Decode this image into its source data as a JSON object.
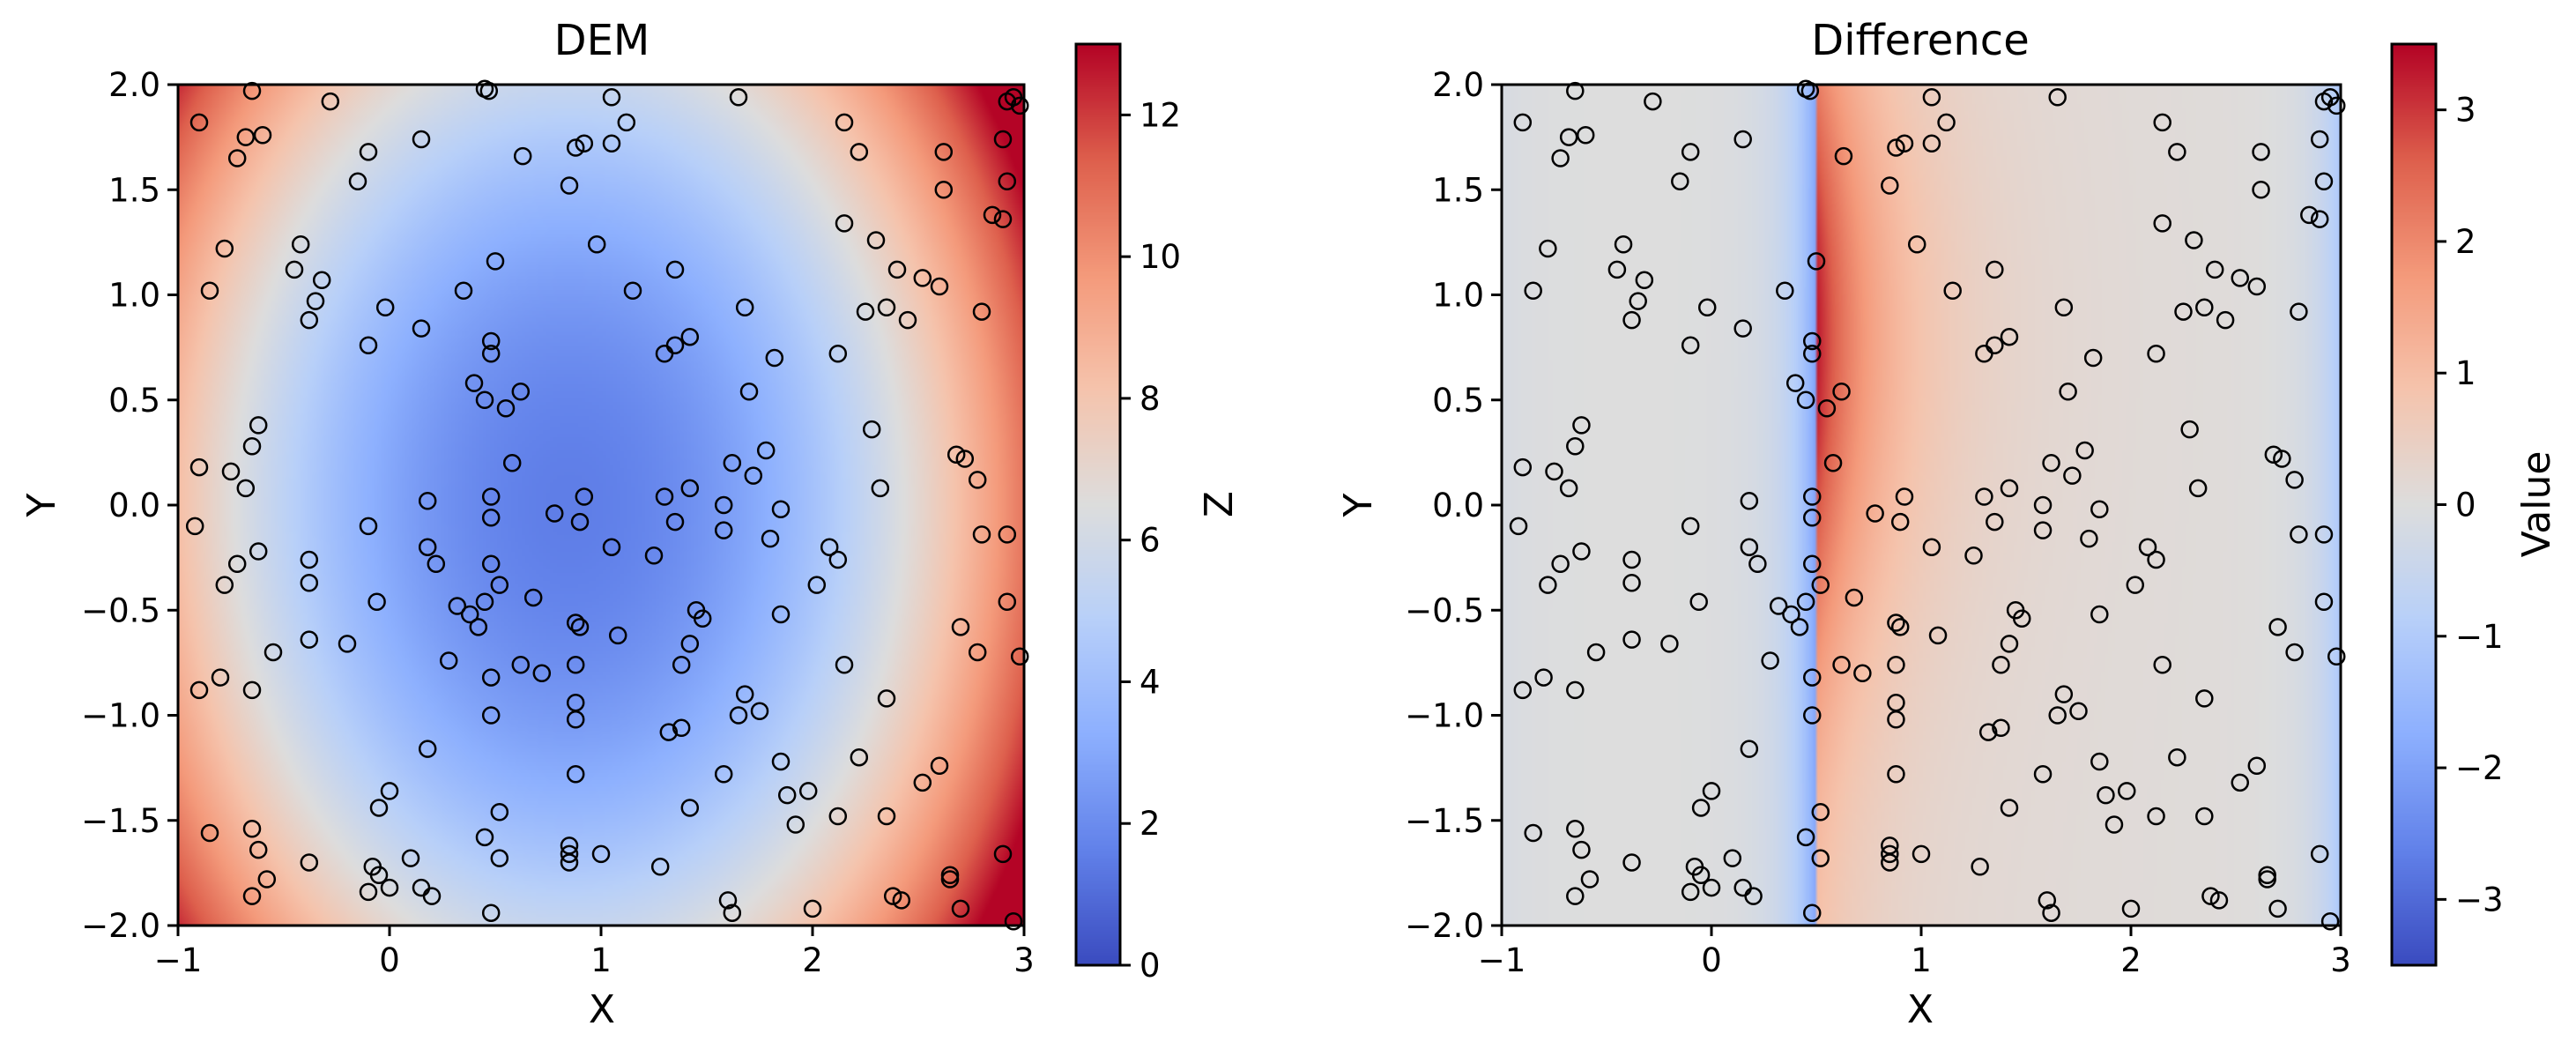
{
  "chart_data": [
    {
      "type": "heatmap",
      "title": "DEM",
      "xlabel": "X",
      "ylabel": "Y",
      "xlim": [
        -1,
        3
      ],
      "ylim": [
        -2,
        2
      ],
      "x_ticks": [
        -1,
        0,
        1,
        2,
        3
      ],
      "x_tick_labels": [
        "−1",
        "0",
        "1",
        "2",
        "3"
      ],
      "y_ticks": [
        -2,
        -1.5,
        -1,
        -0.5,
        0,
        0.5,
        1,
        1.5,
        2
      ],
      "y_tick_labels": [
        "−2.0",
        "−1.5",
        "−1.0",
        "−0.5",
        "0.0",
        "0.5",
        "1.0",
        "1.5",
        "2.0"
      ],
      "colormap": "coolwarm",
      "field": "z = 2*(x-0.85)^2 + 1.0*y^2 + 1.5",
      "colorbar": {
        "label": "Z",
        "range": [
          0,
          13
        ],
        "ticks": [
          0,
          2,
          4,
          6,
          8,
          10,
          12
        ],
        "tick_labels": [
          "0",
          "2",
          "4",
          "6",
          "8",
          "10",
          "12"
        ]
      },
      "points_style": "open black circles"
    },
    {
      "type": "heatmap",
      "title": "Difference",
      "xlabel": "X",
      "ylabel": "Y",
      "xlim": [
        -1,
        3
      ],
      "ylim": [
        -2,
        2
      ],
      "x_ticks": [
        -1,
        0,
        1,
        2,
        3
      ],
      "x_tick_labels": [
        "−1",
        "0",
        "1",
        "2",
        "3"
      ],
      "y_ticks": [
        -2,
        -1.5,
        -1,
        -0.5,
        0,
        0.5,
        1,
        1.5,
        2
      ],
      "y_tick_labels": [
        "−2.0",
        "−1.5",
        "−1.0",
        "−0.5",
        "0.0",
        "0.5",
        "1.0",
        "1.5",
        "2.0"
      ],
      "colormap": "coolwarm",
      "field": "discontinuity at x = 0.5: left side near 0 becoming negative approaching x = 0.5 (down to about -2); right side peaks about +2.5 at x = 0.5, y = 0.8 and decays toward 0; edges near x = -1 and x = 3 slightly negative",
      "colorbar": {
        "label": "Value",
        "range": [
          -3.5,
          3.5
        ],
        "ticks": [
          -3,
          -2,
          -1,
          0,
          1,
          2,
          3
        ],
        "tick_labels": [
          "−3",
          "−2",
          "−1",
          "0",
          "1",
          "2",
          "3"
        ]
      },
      "points_style": "open black circles"
    }
  ],
  "points": [
    [
      -0.9,
      1.82
    ],
    [
      -0.85,
      1.02
    ],
    [
      -0.78,
      1.22
    ],
    [
      -0.72,
      1.65
    ],
    [
      -0.68,
      1.75
    ],
    [
      -0.65,
      1.97
    ],
    [
      -0.6,
      1.76
    ],
    [
      -0.45,
      1.12
    ],
    [
      -0.42,
      1.24
    ],
    [
      -0.38,
      0.88
    ],
    [
      -0.35,
      0.97
    ],
    [
      -0.32,
      1.07
    ],
    [
      -0.28,
      1.92
    ],
    [
      -0.15,
      1.54
    ],
    [
      -0.1,
      1.68
    ],
    [
      -0.1,
      0.76
    ],
    [
      -0.02,
      0.94
    ],
    [
      0.15,
      1.74
    ],
    [
      0.15,
      0.84
    ],
    [
      0.45,
      1.98
    ],
    [
      0.47,
      1.97
    ],
    [
      0.63,
      1.66
    ],
    [
      0.5,
      1.16
    ],
    [
      0.35,
      1.02
    ],
    [
      0.48,
      0.78
    ],
    [
      0.48,
      0.72
    ],
    [
      0.4,
      0.58
    ],
    [
      0.45,
      0.5
    ],
    [
      0.55,
      0.46
    ],
    [
      0.62,
      0.54
    ],
    [
      0.85,
      1.52
    ],
    [
      0.88,
      1.7
    ],
    [
      0.92,
      1.72
    ],
    [
      0.98,
      1.24
    ],
    [
      1.05,
      1.94
    ],
    [
      1.05,
      1.72
    ],
    [
      1.12,
      1.82
    ],
    [
      1.15,
      1.02
    ],
    [
      1.3,
      0.72
    ],
    [
      1.35,
      0.76
    ],
    [
      1.42,
      0.8
    ],
    [
      1.35,
      1.12
    ],
    [
      1.65,
      1.94
    ],
    [
      1.68,
      0.94
    ],
    [
      1.7,
      0.54
    ],
    [
      1.82,
      0.7
    ],
    [
      2.12,
      0.72
    ],
    [
      2.15,
      1.82
    ],
    [
      2.15,
      1.34
    ],
    [
      2.22,
      1.68
    ],
    [
      2.25,
      0.92
    ],
    [
      2.3,
      1.26
    ],
    [
      2.35,
      0.94
    ],
    [
      2.4,
      1.12
    ],
    [
      2.45,
      0.88
    ],
    [
      2.52,
      1.08
    ],
    [
      2.6,
      1.04
    ],
    [
      2.62,
      1.5
    ],
    [
      2.62,
      1.68
    ],
    [
      2.8,
      0.92
    ],
    [
      2.85,
      1.38
    ],
    [
      2.9,
      1.36
    ],
    [
      2.9,
      1.74
    ],
    [
      2.92,
      1.92
    ],
    [
      2.92,
      1.54
    ],
    [
      2.95,
      1.94
    ],
    [
      2.98,
      1.9
    ],
    [
      -0.92,
      -0.1
    ],
    [
      -0.9,
      0.18
    ],
    [
      -0.8,
      -0.82
    ],
    [
      -0.78,
      -0.38
    ],
    [
      -0.75,
      0.16
    ],
    [
      -0.72,
      -0.28
    ],
    [
      -0.68,
      0.08
    ],
    [
      -0.65,
      0.28
    ],
    [
      -0.62,
      0.38
    ],
    [
      -0.62,
      -0.22
    ],
    [
      -0.55,
      -0.7
    ],
    [
      -0.38,
      -0.26
    ],
    [
      -0.38,
      -0.37
    ],
    [
      -0.38,
      -0.64
    ],
    [
      -0.2,
      -0.66
    ],
    [
      -0.1,
      -0.1
    ],
    [
      -0.06,
      -0.46
    ],
    [
      0.18,
      0.02
    ],
    [
      0.18,
      -0.2
    ],
    [
      0.22,
      -0.28
    ],
    [
      0.32,
      -0.48
    ],
    [
      0.28,
      -0.74
    ],
    [
      0.38,
      -0.52
    ],
    [
      0.42,
      -0.58
    ],
    [
      0.45,
      -0.46
    ],
    [
      0.48,
      0.04
    ],
    [
      0.48,
      -0.06
    ],
    [
      0.48,
      -0.28
    ],
    [
      0.52,
      -0.38
    ],
    [
      0.48,
      -0.82
    ],
    [
      0.62,
      -0.76
    ],
    [
      0.58,
      0.2
    ],
    [
      0.68,
      -0.44
    ],
    [
      0.72,
      -0.8
    ],
    [
      0.78,
      -0.04
    ],
    [
      0.88,
      -0.56
    ],
    [
      0.9,
      -0.58
    ],
    [
      0.92,
      0.04
    ],
    [
      0.9,
      -0.08
    ],
    [
      0.88,
      -0.76
    ],
    [
      0.88,
      -0.94
    ],
    [
      1.05,
      -0.2
    ],
    [
      1.08,
      -0.62
    ],
    [
      1.25,
      -0.24
    ],
    [
      1.3,
      0.04
    ],
    [
      1.35,
      -0.08
    ],
    [
      1.42,
      0.08
    ],
    [
      1.45,
      -0.5
    ],
    [
      1.48,
      -0.54
    ],
    [
      1.38,
      -0.76
    ],
    [
      1.42,
      -0.66
    ],
    [
      1.58,
      0.0
    ],
    [
      1.58,
      -0.12
    ],
    [
      1.62,
      0.2
    ],
    [
      1.72,
      0.14
    ],
    [
      1.78,
      0.26
    ],
    [
      1.8,
      -0.16
    ],
    [
      1.85,
      -0.02
    ],
    [
      1.85,
      -0.52
    ],
    [
      1.75,
      -0.98
    ],
    [
      1.65,
      -1.0
    ],
    [
      1.68,
      -0.9
    ],
    [
      1.38,
      -1.06
    ],
    [
      1.32,
      -1.08
    ],
    [
      2.02,
      -0.38
    ],
    [
      2.08,
      -0.2
    ],
    [
      2.12,
      -0.26
    ],
    [
      2.15,
      -0.76
    ],
    [
      2.28,
      0.36
    ],
    [
      2.32,
      0.08
    ],
    [
      2.35,
      -0.92
    ],
    [
      2.68,
      0.24
    ],
    [
      2.72,
      0.22
    ],
    [
      2.78,
      0.12
    ],
    [
      2.8,
      -0.14
    ],
    [
      2.7,
      -0.58
    ],
    [
      2.78,
      -0.7
    ],
    [
      2.92,
      -0.14
    ],
    [
      2.92,
      -0.46
    ],
    [
      2.98,
      -0.72
    ],
    [
      -0.9,
      -0.88
    ],
    [
      -0.85,
      -1.56
    ],
    [
      -0.65,
      -0.88
    ],
    [
      -0.65,
      -1.54
    ],
    [
      -0.62,
      -1.64
    ],
    [
      -0.58,
      -1.78
    ],
    [
      -0.65,
      -1.86
    ],
    [
      -0.38,
      -1.7
    ],
    [
      -0.1,
      -1.84
    ],
    [
      -0.08,
      -1.72
    ],
    [
      -0.05,
      -1.76
    ],
    [
      -0.05,
      -1.44
    ],
    [
      0.0,
      -1.36
    ],
    [
      0.0,
      -1.82
    ],
    [
      0.1,
      -1.68
    ],
    [
      0.18,
      -1.16
    ],
    [
      0.15,
      -1.82
    ],
    [
      0.2,
      -1.86
    ],
    [
      0.45,
      -1.58
    ],
    [
      0.48,
      -1.0
    ],
    [
      0.52,
      -1.46
    ],
    [
      0.52,
      -1.68
    ],
    [
      0.48,
      -1.94
    ],
    [
      0.85,
      -1.62
    ],
    [
      0.85,
      -1.66
    ],
    [
      0.85,
      -1.7
    ],
    [
      0.88,
      -1.28
    ],
    [
      0.88,
      -1.02
    ],
    [
      1.0,
      -1.66
    ],
    [
      1.28,
      -1.72
    ],
    [
      1.42,
      -1.44
    ],
    [
      1.58,
      -1.28
    ],
    [
      1.6,
      -1.88
    ],
    [
      1.62,
      -1.94
    ],
    [
      1.85,
      -1.22
    ],
    [
      1.88,
      -1.38
    ],
    [
      1.92,
      -1.52
    ],
    [
      1.98,
      -1.36
    ],
    [
      2.0,
      -1.92
    ],
    [
      2.12,
      -1.48
    ],
    [
      2.22,
      -1.2
    ],
    [
      2.35,
      -1.48
    ],
    [
      2.38,
      -1.86
    ],
    [
      2.42,
      -1.88
    ],
    [
      2.52,
      -1.32
    ],
    [
      2.6,
      -1.24
    ],
    [
      2.65,
      -1.76
    ],
    [
      2.65,
      -1.78
    ],
    [
      2.7,
      -1.92
    ],
    [
      2.9,
      -1.66
    ],
    [
      2.95,
      -1.98
    ]
  ]
}
